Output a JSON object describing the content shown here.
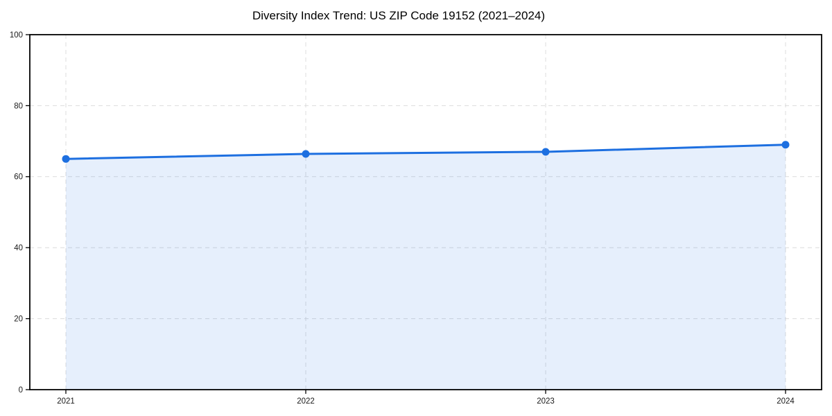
{
  "figure": {
    "title": "Diversity Index Trend: US ZIP Code 19152 (2021–2024)"
  },
  "chart_data": {
    "type": "area",
    "title": "Diversity Index Trend: US ZIP Code 19152 (2021–2024)",
    "categories": [
      "2021",
      "2022",
      "2023",
      "2024"
    ],
    "series": [
      {
        "name": "Diversity Index",
        "values": [
          65,
          66.4,
          67,
          69
        ]
      }
    ],
    "xlabel": "",
    "ylabel": "",
    "ylim": [
      0,
      100
    ],
    "yticks": [
      0,
      20,
      40,
      60,
      80,
      100
    ],
    "grid": true,
    "grid_style": "dashed",
    "legend": "none",
    "marker": "circle",
    "colors": {
      "line": "#1d6fe0",
      "marker": "#1d6fe0",
      "fill": "#1d6fe0",
      "fill_opacity": 0.11,
      "grid": "#dcdcdc",
      "axis": "#000000",
      "tick_text": "#1a1a1a",
      "title_text": "#000000",
      "background": "#ffffff"
    }
  }
}
